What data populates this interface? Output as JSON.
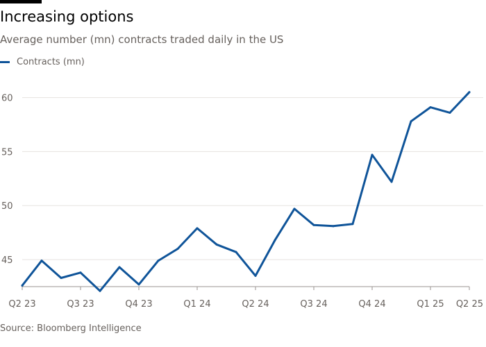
{
  "title": "Increasing options",
  "subtitle": "Average number (mn) contracts traded daily in the US",
  "source": "Source: Bloomberg Intelligence",
  "colors": {
    "series": "#0f5499",
    "grid": "#e6e3df",
    "axis": "#66605c"
  },
  "chart_data": {
    "type": "line",
    "title": "Increasing options",
    "subtitle": "Average number (mn) contracts traded daily in the US",
    "xlabel": "",
    "ylabel": "",
    "x_tick_labels": [
      "Q2 23",
      "Q3 23",
      "Q4 23",
      "Q1 24",
      "Q2 24",
      "Q3 24",
      "Q4 24",
      "Q1 25",
      "Q2 25"
    ],
    "x_tick_positions": [
      0,
      3,
      6,
      9,
      12,
      15,
      18,
      21,
      23
    ],
    "y_ticks": [
      45,
      50,
      55,
      60
    ],
    "ylim": [
      42.5,
      61
    ],
    "grid": true,
    "legend_position": "top-left",
    "series": [
      {
        "name": "Contracts (mn)",
        "values": [
          42.6,
          44.9,
          43.3,
          43.8,
          42.1,
          44.3,
          42.7,
          44.9,
          46.0,
          47.9,
          46.4,
          45.7,
          43.5,
          46.8,
          49.7,
          48.2,
          48.1,
          48.3,
          54.7,
          52.2,
          57.8,
          59.1,
          58.6,
          60.5
        ]
      }
    ]
  }
}
